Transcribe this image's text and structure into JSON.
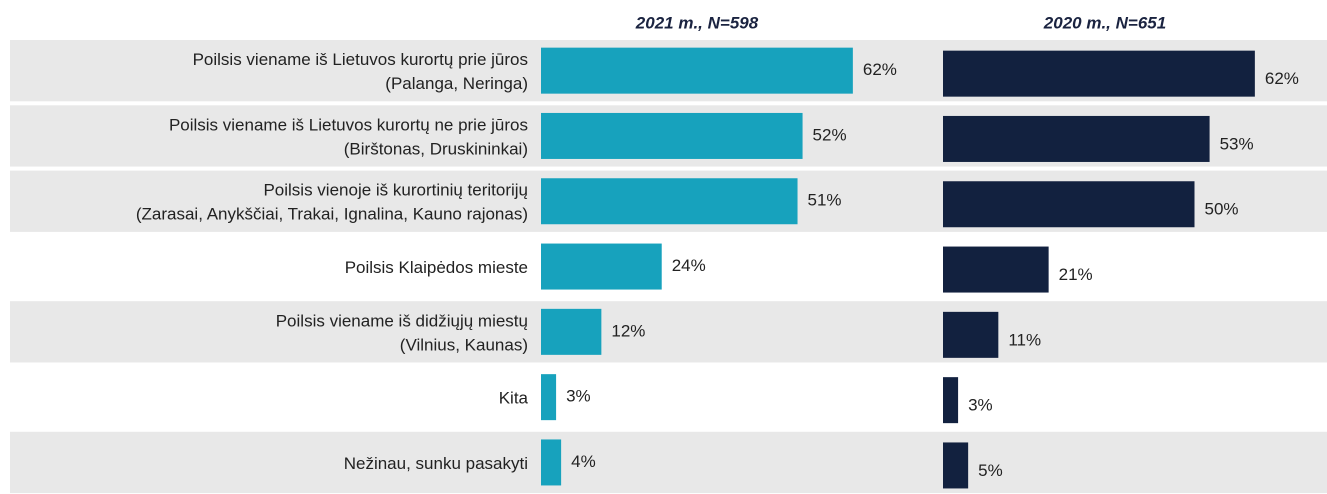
{
  "chart_data": {
    "type": "bar",
    "orientation": "horizontal",
    "categories": [
      [
        "Poilsis viename iš Lietuvos kurortų prie jūros",
        "(Palanga, Neringa)"
      ],
      [
        "Poilsis viename iš Lietuvos kurortų ne prie jūros",
        "(Birštonas, Druskininkai)"
      ],
      [
        "Poilsis vienoje iš kurortinių teritorijų",
        "(Zarasai, Anykščiai, Trakai, Ignalina, Kauno rajonas)"
      ],
      [
        "Poilsis Klaipėdos mieste"
      ],
      [
        "Poilsis viename iš didžiųjų miestų",
        "(Vilnius, Kaunas)"
      ],
      [
        "Kita"
      ],
      [
        "Nežinau, sunku pasakyti"
      ]
    ],
    "series": [
      {
        "name": "2021 m., N=598",
        "color": "#17a2bd",
        "values": [
          62,
          52,
          51,
          24,
          12,
          3,
          4
        ],
        "value_labels": [
          "62%",
          "52%",
          "51%",
          "24%",
          "12%",
          "3%",
          "4%"
        ]
      },
      {
        "name": "2020 m., N=651",
        "color": "#12213f",
        "values": [
          62,
          53,
          50,
          21,
          11,
          3,
          5
        ],
        "value_labels": [
          "62%",
          "53%",
          "50%",
          "21%",
          "11%",
          "3%",
          "5%"
        ]
      }
    ]
  }
}
